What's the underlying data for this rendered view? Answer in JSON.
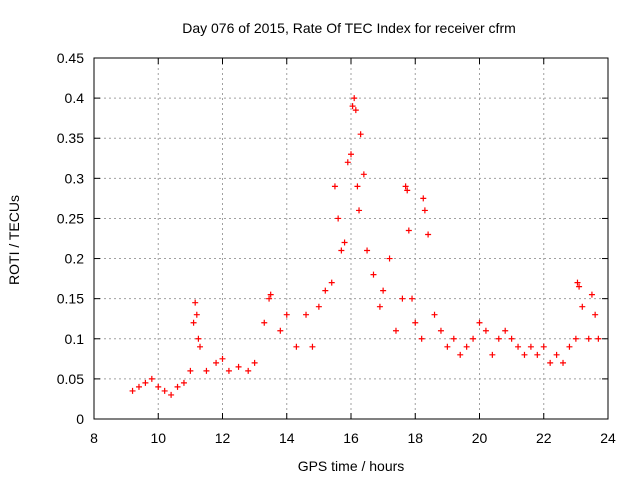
{
  "chart_data": {
    "type": "scatter",
    "title": "Day 076 of 2015, Rate Of TEC Index for receiver cfrm",
    "xlabel": "GPS time / hours",
    "ylabel": "ROTI / TECUs",
    "xlim": [
      8,
      24
    ],
    "ylim": [
      0,
      0.45
    ],
    "xticks": [
      "8",
      "10",
      "12",
      "14",
      "16",
      "18",
      "20",
      "22",
      "24"
    ],
    "yticks": [
      "0",
      "0.05",
      "0.1",
      "0.15",
      "0.2",
      "0.25",
      "0.3",
      "0.35",
      "0.4",
      "0.45"
    ],
    "grid": true,
    "marker": "+",
    "color": "#ff0000",
    "series": [
      {
        "name": "ROTI",
        "x": [
          9.2,
          9.4,
          9.6,
          9.8,
          10.0,
          10.2,
          10.4,
          10.6,
          10.8,
          11.0,
          11.1,
          11.15,
          11.2,
          11.25,
          11.3,
          11.5,
          11.8,
          12.0,
          12.2,
          12.5,
          12.8,
          13.0,
          13.3,
          13.45,
          13.5,
          13.8,
          14.0,
          14.3,
          14.6,
          14.8,
          15.0,
          15.2,
          15.4,
          15.5,
          15.6,
          15.7,
          15.8,
          15.9,
          16.0,
          16.05,
          16.1,
          16.15,
          16.2,
          16.25,
          16.3,
          16.4,
          16.5,
          16.7,
          16.9,
          17.0,
          17.2,
          17.4,
          17.6,
          17.7,
          17.75,
          17.8,
          17.9,
          18.0,
          18.2,
          18.25,
          18.3,
          18.4,
          18.6,
          18.8,
          19.0,
          19.2,
          19.4,
          19.6,
          19.8,
          20.0,
          20.2,
          20.4,
          20.6,
          20.8,
          21.0,
          21.2,
          21.4,
          21.6,
          21.8,
          22.0,
          22.2,
          22.4,
          22.6,
          22.8,
          23.0,
          23.05,
          23.1,
          23.2,
          23.4,
          23.5,
          23.6,
          23.7
        ],
        "y": [
          0.035,
          0.04,
          0.045,
          0.05,
          0.04,
          0.035,
          0.03,
          0.04,
          0.045,
          0.06,
          0.12,
          0.145,
          0.13,
          0.1,
          0.09,
          0.06,
          0.07,
          0.075,
          0.06,
          0.065,
          0.06,
          0.07,
          0.12,
          0.15,
          0.155,
          0.11,
          0.13,
          0.09,
          0.13,
          0.09,
          0.14,
          0.16,
          0.17,
          0.29,
          0.25,
          0.21,
          0.22,
          0.32,
          0.33,
          0.39,
          0.4,
          0.385,
          0.29,
          0.26,
          0.355,
          0.305,
          0.21,
          0.18,
          0.14,
          0.16,
          0.2,
          0.11,
          0.15,
          0.29,
          0.285,
          0.235,
          0.15,
          0.12,
          0.1,
          0.275,
          0.26,
          0.23,
          0.13,
          0.11,
          0.09,
          0.1,
          0.08,
          0.09,
          0.1,
          0.12,
          0.11,
          0.08,
          0.1,
          0.11,
          0.1,
          0.09,
          0.08,
          0.09,
          0.08,
          0.09,
          0.07,
          0.08,
          0.07,
          0.09,
          0.1,
          0.17,
          0.165,
          0.14,
          0.1,
          0.155,
          0.13,
          0.1
        ]
      }
    ]
  }
}
